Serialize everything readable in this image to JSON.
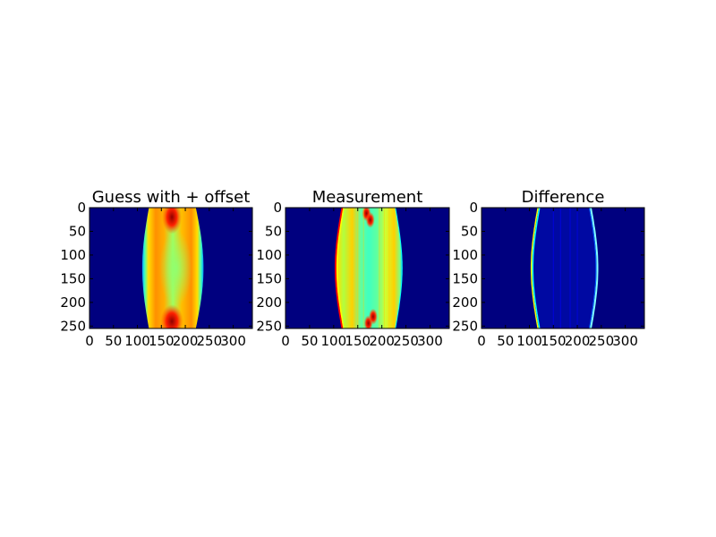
{
  "chart_data": [
    {
      "type": "heatmap",
      "title": "Guess with + offset",
      "xlim": [
        0,
        340
      ],
      "ylim": [
        255,
        0
      ],
      "xticks": [
        0,
        50,
        100,
        150,
        200,
        250,
        300
      ],
      "yticks": [
        0,
        50,
        100,
        150,
        200,
        250
      ],
      "xtick_labels": [
        "0",
        "50",
        "100",
        "150",
        "200",
        "250",
        "300"
      ],
      "ytick_labels": [
        "0",
        "50",
        "100",
        "150",
        "200",
        "250"
      ],
      "colormap": "jet",
      "description": "symmetric lens-shaped bright region between x≈115 and x≈235, widest near y≈128; warm (yellow/orange/red) sides with green center"
    },
    {
      "type": "heatmap",
      "title": "Measurement",
      "xlim": [
        0,
        340
      ],
      "ylim": [
        255,
        0
      ],
      "xticks": [
        0,
        50,
        100,
        150,
        200,
        250,
        300
      ],
      "yticks": [
        0,
        50,
        100,
        150,
        200,
        250
      ],
      "xtick_labels": [
        "0",
        "50",
        "100",
        "150",
        "200",
        "250",
        "300"
      ],
      "ytick_labels": [
        "0",
        "50",
        "100",
        "150",
        "200",
        "250"
      ],
      "colormap": "jet",
      "description": "similar lens-shaped region with sharp red edge on the left and streaky vertical structure"
    },
    {
      "type": "heatmap",
      "title": "Difference",
      "xlim": [
        0,
        340
      ],
      "ylim": [
        255,
        0
      ],
      "xticks": [
        0,
        50,
        100,
        150,
        200,
        250,
        300
      ],
      "yticks": [
        0,
        50,
        100,
        150,
        200,
        250
      ],
      "xtick_labels": [
        "0",
        "50",
        "100",
        "150",
        "200",
        "250",
        "300"
      ],
      "ytick_labels": [
        "0",
        "50",
        "100",
        "150",
        "200",
        "250"
      ],
      "colormap": "jet",
      "description": "mostly dark blue with thin bright edge lines along both lens boundaries"
    }
  ],
  "colors": {
    "background": "#00007f",
    "blue": "#0000ff",
    "cyan": "#00ffff",
    "green": "#7fff7f",
    "yellow": "#ffff00",
    "orange": "#ff7f00",
    "red": "#ff0000",
    "darkred": "#7f0000"
  }
}
